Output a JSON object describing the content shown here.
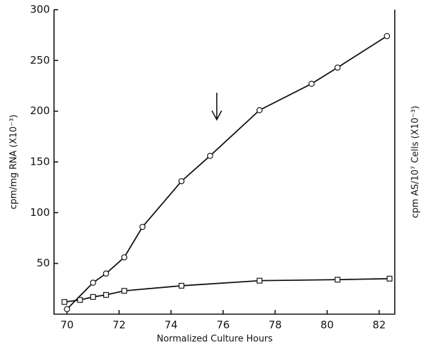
{
  "chart_data": {
    "type": "line",
    "x_label": "Normalized Culture Hours",
    "y_label": "cpm/mg RNA (X10⁻³)",
    "y2_label": "cpm AS/10⁷ Cells (X10⁻³)",
    "xlim": [
      69.5,
      82.6
    ],
    "xticks": [
      70,
      72,
      74,
      76,
      78,
      80,
      82
    ],
    "ylim": [
      0,
      300
    ],
    "yticks": [
      50,
      100,
      150,
      200,
      250,
      300
    ],
    "series": [
      {
        "marker": "circle",
        "color": "#111111",
        "x": [
          70.0,
          71.0,
          71.5,
          72.2,
          72.9,
          74.4,
          75.5,
          77.4,
          79.4,
          80.4,
          82.3
        ],
        "values": [
          5,
          31,
          40,
          56,
          86,
          131,
          156,
          201,
          227,
          243,
          274
        ]
      },
      {
        "marker": "square",
        "color": "#111111",
        "x": [
          69.9,
          70.5,
          71.0,
          71.5,
          72.2,
          74.4,
          77.4,
          80.4,
          82.4
        ],
        "values": [
          12,
          14,
          17,
          19,
          23,
          28,
          33,
          34,
          35
        ]
      }
    ]
  }
}
